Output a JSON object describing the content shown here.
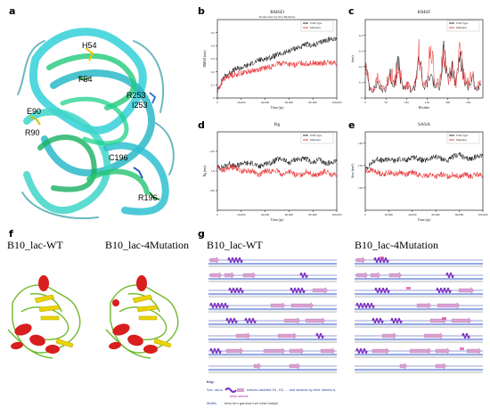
{
  "panels": {
    "a": "a",
    "b": "b",
    "c": "c",
    "d": "d",
    "e": "e",
    "f": "f",
    "g": "g"
  },
  "panel_a": {
    "residue_labels": [
      "H54",
      "F54",
      "R253",
      "I253",
      "E90",
      "R90",
      "C196",
      "R196"
    ]
  },
  "chart_data": [
    {
      "panel": "b",
      "type": "line",
      "title": "RMSD",
      "subtitle": "Protein after lsq fit to Backbone",
      "xlabel": "Time (ps)",
      "ylabel": "RMSD (nm)",
      "xlim": [
        0,
        100000
      ],
      "ylim": [
        0,
        0.6
      ],
      "xticks": [
        "0",
        "20,000",
        "40,000",
        "60,000",
        "80,000",
        "100,000"
      ],
      "yticks": [
        "0",
        "0.1",
        "0.2",
        "0.3",
        "0.4",
        "0.5"
      ],
      "legend_position": "top-right",
      "legend": [
        "Wild Type",
        "Mutation"
      ],
      "x": [
        0,
        5000,
        10000,
        15000,
        20000,
        25000,
        30000,
        35000,
        40000,
        45000,
        50000,
        55000,
        60000,
        65000,
        70000,
        75000,
        80000,
        85000,
        90000,
        95000,
        100000
      ],
      "series": [
        {
          "name": "Wild Type",
          "color": "#000000",
          "values": [
            0.05,
            0.16,
            0.19,
            0.22,
            0.23,
            0.25,
            0.27,
            0.29,
            0.3,
            0.31,
            0.33,
            0.34,
            0.36,
            0.38,
            0.39,
            0.41,
            0.4,
            0.42,
            0.44,
            0.45,
            0.46
          ]
        },
        {
          "name": "Mutation",
          "color": "#e31a1c",
          "values": [
            0.05,
            0.14,
            0.17,
            0.18,
            0.19,
            0.2,
            0.21,
            0.22,
            0.23,
            0.24,
            0.26,
            0.27,
            0.26,
            0.25,
            0.27,
            0.26,
            0.27,
            0.26,
            0.27,
            0.27,
            0.26
          ]
        }
      ]
    },
    {
      "panel": "c",
      "type": "line",
      "title": "RMSF",
      "xlabel": "Residue",
      "ylabel": "(nm)",
      "xlim": [
        0,
        285
      ],
      "ylim": [
        0,
        0.5
      ],
      "xticks": [
        "0",
        "50",
        "100",
        "150",
        "200",
        "250"
      ],
      "yticks": [
        "0",
        "0.1",
        "0.2",
        "0.3",
        "0.4"
      ],
      "legend_position": "top-right",
      "legend": [
        "Wild Type",
        "Mutation"
      ],
      "x": [
        0,
        10,
        20,
        30,
        40,
        50,
        60,
        70,
        80,
        90,
        100,
        110,
        120,
        130,
        140,
        150,
        160,
        170,
        180,
        190,
        200,
        210,
        220,
        230,
        240,
        250,
        260,
        270,
        280
      ],
      "series": [
        {
          "name": "Wild Type",
          "color": "#000000",
          "values": [
            0.2,
            0.07,
            0.05,
            0.1,
            0.05,
            0.06,
            0.15,
            0.08,
            0.22,
            0.06,
            0.08,
            0.05,
            0.07,
            0.3,
            0.06,
            0.1,
            0.15,
            0.07,
            0.08,
            0.3,
            0.1,
            0.18,
            0.08,
            0.32,
            0.1,
            0.08,
            0.12,
            0.06,
            0.08
          ]
        },
        {
          "name": "Mutation",
          "color": "#e31a1c",
          "values": [
            0.22,
            0.08,
            0.05,
            0.12,
            0.06,
            0.07,
            0.18,
            0.09,
            0.25,
            0.07,
            0.09,
            0.06,
            0.08,
            0.28,
            0.07,
            0.12,
            0.35,
            0.08,
            0.1,
            0.32,
            0.12,
            0.2,
            0.09,
            0.3,
            0.12,
            0.1,
            0.14,
            0.07,
            0.1
          ]
        }
      ]
    },
    {
      "panel": "d",
      "type": "line",
      "title": "Rg",
      "xlabel": "Time (ps)",
      "ylabel": "Rg (nm)",
      "xlim": [
        0,
        100000
      ],
      "ylim": [
        1.8,
        2.0
      ],
      "xticks": [
        "0",
        "20,000",
        "40,000",
        "60,000",
        "80,000",
        "100,000"
      ],
      "yticks": [
        "1.85",
        "1.9",
        "1.95"
      ],
      "legend_position": "top-right",
      "legend": [
        "Wild Type",
        "Mutation"
      ],
      "x": [
        0,
        5000,
        10000,
        15000,
        20000,
        25000,
        30000,
        35000,
        40000,
        45000,
        50000,
        55000,
        60000,
        65000,
        70000,
        75000,
        80000,
        85000,
        90000,
        95000,
        100000
      ],
      "series": [
        {
          "name": "Wild Type",
          "color": "#000000",
          "values": [
            1.91,
            1.91,
            1.92,
            1.91,
            1.92,
            1.92,
            1.92,
            1.91,
            1.92,
            1.92,
            1.93,
            1.93,
            1.92,
            1.93,
            1.93,
            1.93,
            1.92,
            1.93,
            1.92,
            1.92,
            1.93
          ]
        },
        {
          "name": "Mutation",
          "color": "#e31a1c",
          "values": [
            1.91,
            1.9,
            1.91,
            1.91,
            1.9,
            1.9,
            1.9,
            1.89,
            1.9,
            1.9,
            1.9,
            1.89,
            1.9,
            1.89,
            1.89,
            1.9,
            1.89,
            1.89,
            1.9,
            1.89,
            1.89
          ]
        }
      ]
    },
    {
      "panel": "e",
      "type": "line",
      "title": "SASA",
      "xlabel": "Time (ps)",
      "ylabel": "Area (nm²)",
      "xlim": [
        0,
        100000
      ],
      "ylim": [
        110,
        145
      ],
      "xticks": [
        "0",
        "20,000",
        "40,000",
        "60,000",
        "80,000",
        "100,000"
      ],
      "yticks": [
        "120",
        "130",
        "140"
      ],
      "legend_position": "top-right",
      "legend": [
        "Wild Type",
        "Mutation"
      ],
      "x": [
        0,
        5000,
        10000,
        15000,
        20000,
        25000,
        30000,
        35000,
        40000,
        45000,
        50000,
        55000,
        60000,
        65000,
        70000,
        75000,
        80000,
        85000,
        90000,
        95000,
        100000
      ],
      "series": [
        {
          "name": "Wild Type",
          "color": "#000000",
          "values": [
            128,
            131,
            133,
            132,
            133,
            132,
            133,
            132,
            134,
            133,
            132,
            133,
            134,
            133,
            132,
            134,
            135,
            133,
            133,
            134,
            135
          ]
        },
        {
          "name": "Mutation",
          "color": "#e31a1c",
          "values": [
            127,
            128,
            127,
            126,
            127,
            126,
            127,
            126,
            127,
            126,
            125,
            126,
            125,
            126,
            125,
            126,
            125,
            126,
            125,
            126,
            125
          ]
        }
      ]
    }
  ],
  "panel_f": {
    "left_title": "B10_lac-WT",
    "right_title": "B10_lac-4Mutation"
  },
  "panel_g": {
    "left_title": "B10_lac-WT",
    "right_title": "B10_lac-4Mutation",
    "key_label": "Key:",
    "sec_struc_label": "Sec. struc.",
    "key_helix_text": "helices labelled H1, H2, ... and strands by their sheets A,",
    "key_strand_text": "beta strand",
    "motifs_label": "Motifs:",
    "motifs_text": "beta turn   gamma turn   beta hairpin"
  },
  "colors": {
    "wild_type": "#000000",
    "mutation": "#e31a1c",
    "helix": "#7b2fbf",
    "strand": "#d9a0d0"
  }
}
